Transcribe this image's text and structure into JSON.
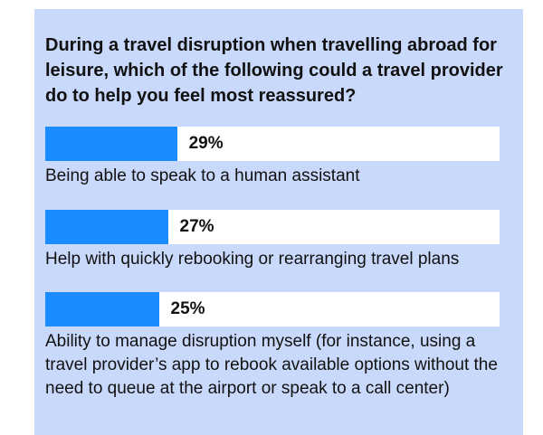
{
  "chart_data": {
    "type": "bar",
    "title": "During a travel disruption when travelling abroad for leisure, which of the following could a travel provider do to help you feel most reassured?",
    "categories": [
      "Being able to speak to a human assistant",
      "Help with quickly rebooking or rearranging travel plans",
      "Ability to manage disruption myself (for instance, using a travel provider’s app to rebook available options without the need to queue at the airport or speak to a call center)"
    ],
    "values": [
      29,
      27,
      25
    ],
    "value_labels": [
      "29%",
      "27%",
      "25%"
    ],
    "xlim": [
      0,
      100
    ],
    "color": "#1a8cff"
  }
}
